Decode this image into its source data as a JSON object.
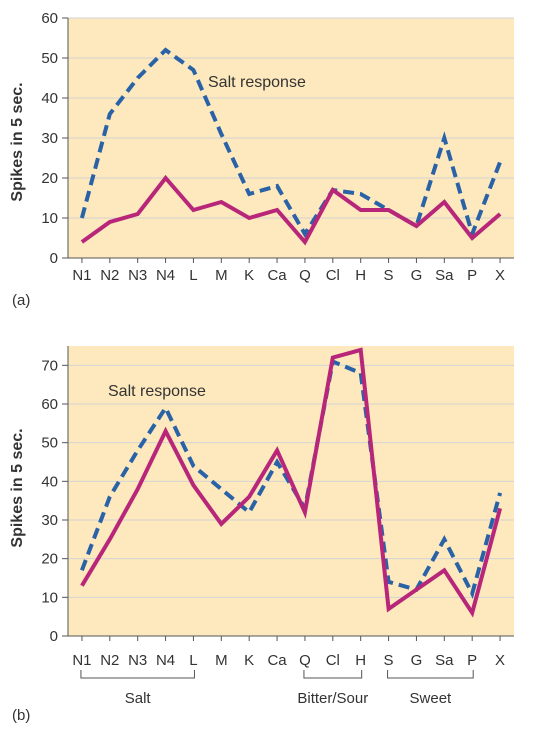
{
  "chart_data": [
    {
      "panel_label": "(a)",
      "type": "line",
      "ylabel": "Spikes in 5 sec.",
      "ylim": [
        0,
        60
      ],
      "y_ticks": [
        0,
        10,
        20,
        30,
        40,
        50,
        60
      ],
      "categories": [
        "N1",
        "N2",
        "N3",
        "N4",
        "L",
        "M",
        "K",
        "Ca",
        "Q",
        "Cl",
        "H",
        "S",
        "G",
        "Sa",
        "P",
        "X"
      ],
      "annotation": "Salt response",
      "grid": true,
      "series": [
        {
          "style": "dashed",
          "color": "#2a62a8",
          "values": [
            10,
            36,
            45,
            52,
            47,
            31,
            16,
            18,
            6,
            17,
            16,
            12,
            8,
            30,
            6,
            24
          ]
        },
        {
          "style": "solid",
          "color": "#b8267a",
          "values": [
            4,
            9,
            11,
            20,
            12,
            14,
            10,
            12,
            4,
            17,
            12,
            12,
            8,
            14,
            5,
            11
          ]
        }
      ]
    },
    {
      "panel_label": "(b)",
      "type": "line",
      "ylabel": "Spikes in 5 sec.",
      "ylim": [
        0,
        75
      ],
      "y_ticks": [
        0,
        10,
        20,
        30,
        40,
        50,
        60,
        70
      ],
      "categories": [
        "N1",
        "N2",
        "N3",
        "N4",
        "L",
        "M",
        "K",
        "Ca",
        "Q",
        "Cl",
        "H",
        "S",
        "G",
        "Sa",
        "P",
        "X"
      ],
      "annotation": "Salt response",
      "grid": true,
      "groups": [
        {
          "label": "Salt",
          "from": "N1",
          "to": "L"
        },
        {
          "label": "Bitter/Sour",
          "from": "Q",
          "to": "H"
        },
        {
          "label": "Sweet",
          "from": "S",
          "to": "P"
        }
      ],
      "series": [
        {
          "style": "dashed",
          "color": "#2a62a8",
          "values": [
            17,
            36,
            48,
            59,
            44,
            38,
            32,
            45,
            33,
            71,
            68,
            14,
            12,
            25,
            11,
            37
          ]
        },
        {
          "style": "solid",
          "color": "#b8267a",
          "values": [
            13,
            25,
            38,
            53,
            39,
            29,
            36,
            48,
            32,
            72,
            74,
            7,
            12,
            17,
            6,
            33
          ]
        }
      ]
    }
  ],
  "colors": {
    "plot_background": "#fde9bd",
    "grid_line": "#d3d3d3",
    "axis": "#555555",
    "text": "#333333"
  }
}
